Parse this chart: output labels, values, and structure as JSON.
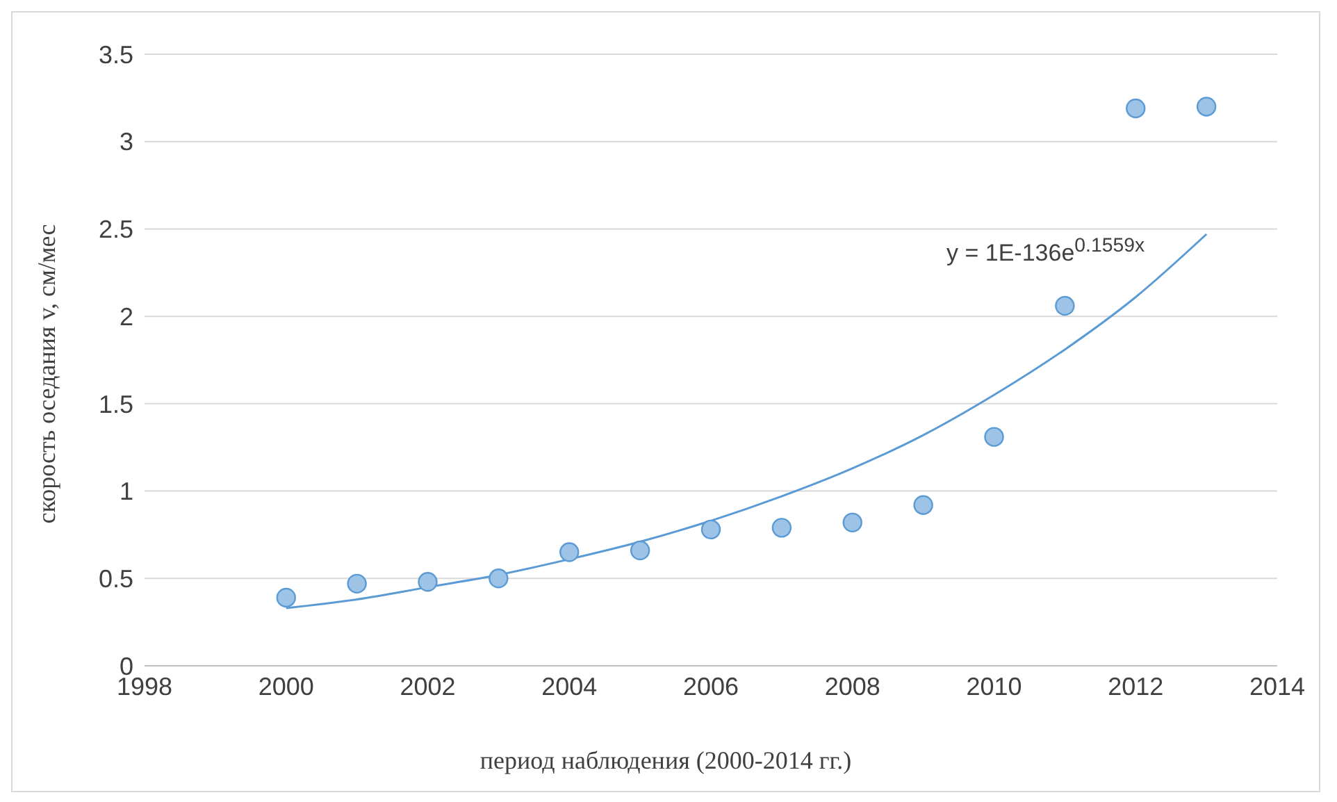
{
  "chart_data": {
    "type": "scatter",
    "xlabel": "период наблюдения (2000-2014 гг.)",
    "ylabel": "скорость оседания v, см/мес",
    "xlim": [
      1998,
      2014
    ],
    "xticks": [
      1998,
      2000,
      2002,
      2004,
      2006,
      2008,
      2010,
      2012,
      2014
    ],
    "ylim": [
      0,
      3.5
    ],
    "yticks": [
      0,
      0.5,
      1,
      1.5,
      2,
      2.5,
      3,
      3.5
    ],
    "grid": "y",
    "legend": false,
    "series": [
      {
        "marker": "circle",
        "color": "#9dc3e6",
        "x": [
          2000,
          2001,
          2002,
          2003,
          2004,
          2005,
          2006,
          2007,
          2008,
          2009,
          2010,
          2011,
          2012,
          2013
        ],
        "values": [
          0.39,
          0.47,
          0.48,
          0.5,
          0.65,
          0.66,
          0.78,
          0.79,
          0.82,
          0.92,
          1.31,
          2.06,
          3.19,
          3.2
        ]
      },
      {
        "type": "line",
        "color": "#5b9bd5",
        "x": [
          2000,
          2001,
          2002,
          2003,
          2004,
          2005,
          2006,
          2007,
          2008,
          2009,
          2010,
          2011,
          2012,
          2013
        ],
        "values": [
          0.33,
          0.38,
          0.45,
          0.52,
          0.61,
          0.71,
          0.83,
          0.97,
          1.13,
          1.32,
          1.55,
          1.81,
          2.11,
          2.47
        ]
      }
    ],
    "annotations": [
      "y = 1E-136e$^{0.1559x}$"
    ]
  }
}
